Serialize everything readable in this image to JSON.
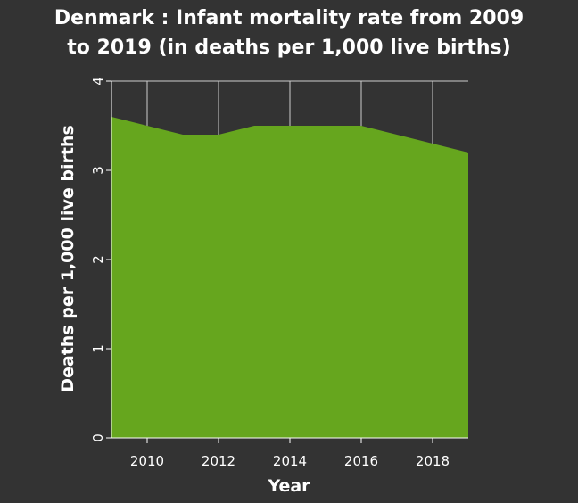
{
  "chart_data": {
    "type": "area",
    "title": "Denmark : Infant mortality rate from 2009 to 2019 (in deaths per 1,000 live births)",
    "title_lines": [
      "Denmark : Infant mortality rate from 2009",
      "to 2019 (in deaths per 1,000 live births)"
    ],
    "xlabel": "Year",
    "ylabel": "Deaths per 1,000 live births",
    "x": [
      2009,
      2010,
      2011,
      2012,
      2013,
      2014,
      2015,
      2016,
      2017,
      2018,
      2019
    ],
    "series": [
      {
        "values": [
          3.6,
          3.5,
          3.4,
          3.4,
          3.5,
          3.5,
          3.5,
          3.5,
          3.4,
          3.3,
          3.2
        ]
      }
    ],
    "xlim": [
      2009,
      2019
    ],
    "ylim": [
      0,
      4
    ],
    "xticks": [
      2010,
      2012,
      2014,
      2016,
      2018
    ],
    "yticks": [
      0,
      1,
      2,
      3,
      4
    ],
    "grid": true,
    "colors": {
      "fill": "#66a61e",
      "background": "#333333",
      "grid": "#cccccc",
      "text": "#ffffff"
    }
  }
}
